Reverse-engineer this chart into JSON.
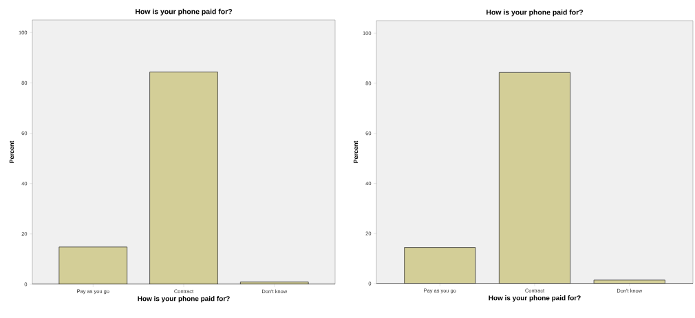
{
  "chart_data": [
    {
      "type": "bar",
      "title": "How is your phone paid for?",
      "xlabel": "How is your phone paid for?",
      "ylabel": "Percent",
      "categories": [
        "Pay as you go",
        "Contract",
        "Don't know"
      ],
      "values": [
        14.8,
        84.3,
        0.9
      ],
      "color": "#d3ce97",
      "ylim": [
        0,
        105
      ],
      "yticks": [
        0,
        20,
        40,
        60,
        80,
        100
      ]
    },
    {
      "type": "bar",
      "title": "How is your phone paid for?",
      "xlabel": "How is your phone paid for?",
      "ylabel": "Percent",
      "categories": [
        "Pay as you go",
        "Contract",
        "Don't know"
      ],
      "values": [
        14.4,
        84.3,
        1.4
      ],
      "color": "#d3ce97",
      "ylim": [
        0,
        105
      ],
      "yticks": [
        0,
        20,
        40,
        60,
        80,
        100
      ]
    }
  ]
}
